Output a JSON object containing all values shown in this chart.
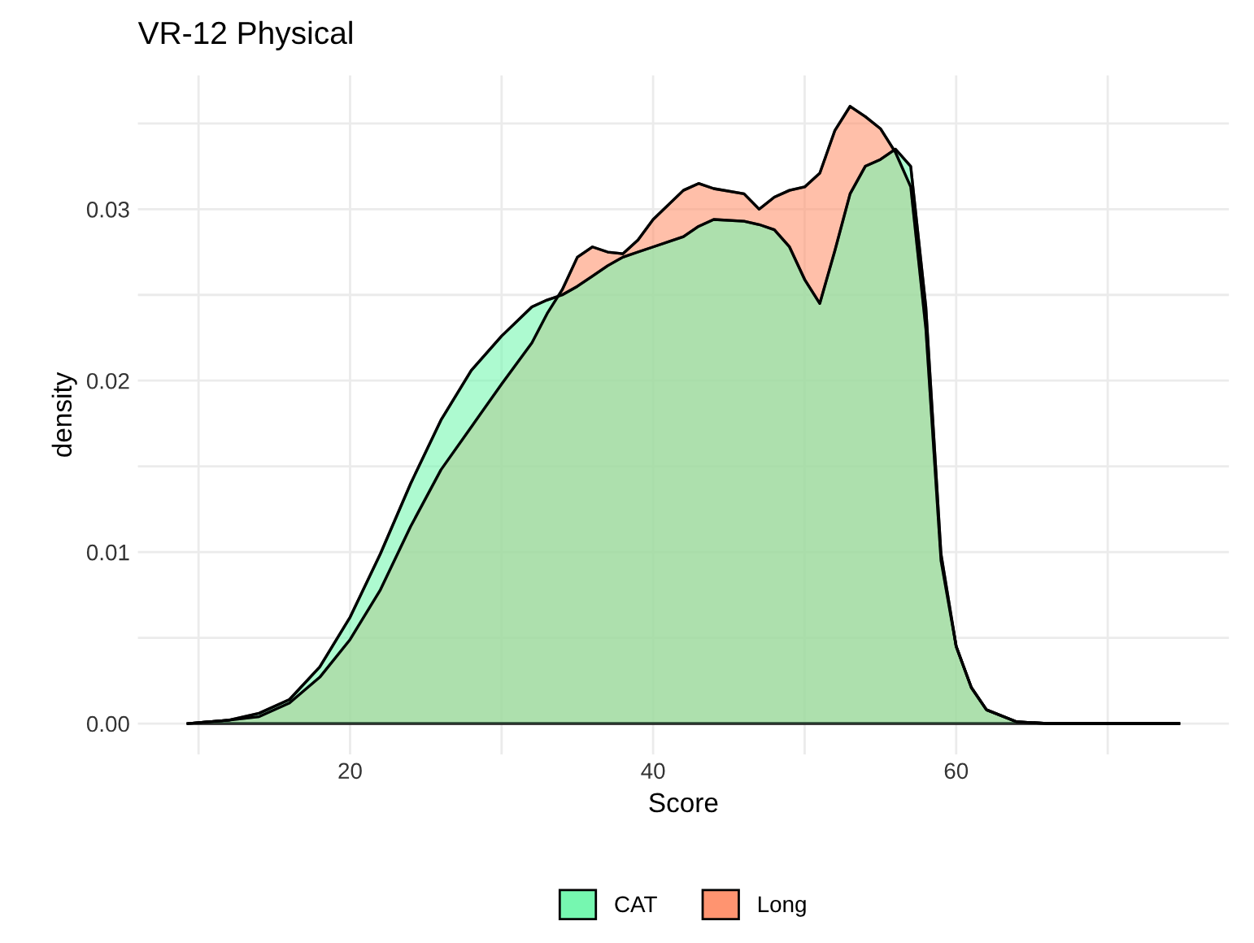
{
  "chart_data": {
    "type": "area",
    "title": "VR-12 Physical",
    "xlabel": "Score",
    "ylabel": "density",
    "x": [
      9.3,
      12,
      14,
      16,
      18,
      20,
      22,
      24,
      26,
      28,
      30,
      32,
      33,
      34,
      35,
      36,
      37,
      38,
      39,
      40,
      42,
      43,
      44,
      46,
      47,
      48,
      49,
      50,
      51,
      52,
      53,
      54,
      55,
      56,
      57,
      58,
      59,
      60,
      61,
      62,
      64,
      66,
      70,
      74.7
    ],
    "series": [
      {
        "name": "CAT",
        "color": "#76f7b0",
        "values": [
          0,
          0.0002,
          0.0006,
          0.0014,
          0.0033,
          0.0062,
          0.0099,
          0.014,
          0.0177,
          0.0206,
          0.0226,
          0.0243,
          0.0247,
          0.025,
          0.0255,
          0.0261,
          0.0267,
          0.0272,
          0.0275,
          0.0278,
          0.0284,
          0.029,
          0.0294,
          0.0293,
          0.0291,
          0.0288,
          0.0278,
          0.0259,
          0.0245,
          0.0276,
          0.0309,
          0.0325,
          0.0329,
          0.0335,
          0.0325,
          0.0243,
          0.0099,
          0.0045,
          0.0021,
          0.0008,
          0.0001,
          0,
          0,
          0
        ]
      },
      {
        "name": "Long",
        "color": "#ff9470",
        "values": [
          0,
          0.0002,
          0.0004,
          0.0012,
          0.0027,
          0.0049,
          0.0078,
          0.0115,
          0.0148,
          0.0173,
          0.0198,
          0.0222,
          0.0239,
          0.0253,
          0.0272,
          0.0278,
          0.0275,
          0.0274,
          0.0282,
          0.0294,
          0.0311,
          0.0315,
          0.0312,
          0.0309,
          0.03,
          0.0307,
          0.0311,
          0.0313,
          0.0321,
          0.0346,
          0.036,
          0.0354,
          0.0347,
          0.0333,
          0.0313,
          0.023,
          0.0095,
          0.0045,
          0.0021,
          0.0008,
          0.0001,
          0,
          0,
          0
        ]
      }
    ],
    "xlim": [
      6.0,
      78.0
    ],
    "ylim": [
      -0.0018,
      0.0378
    ],
    "xticks": [
      {
        "value": 10,
        "label": null
      },
      20,
      {
        "value": 30,
        "label": null
      },
      40,
      {
        "value": 50,
        "label": null
      },
      60,
      {
        "value": 70,
        "label": null
      }
    ],
    "yticks": [
      {
        "value": 0,
        "label": "0.00"
      },
      {
        "value": 0.005,
        "label": null
      },
      {
        "value": 0.01,
        "label": "0.01"
      },
      {
        "value": 0.015,
        "label": null
      },
      {
        "value": 0.02,
        "label": "0.02"
      },
      {
        "value": 0.025,
        "label": null
      },
      {
        "value": 0.03,
        "label": "0.03"
      },
      {
        "value": 0.035,
        "label": null
      }
    ],
    "grid": true,
    "legend": "bottom"
  }
}
